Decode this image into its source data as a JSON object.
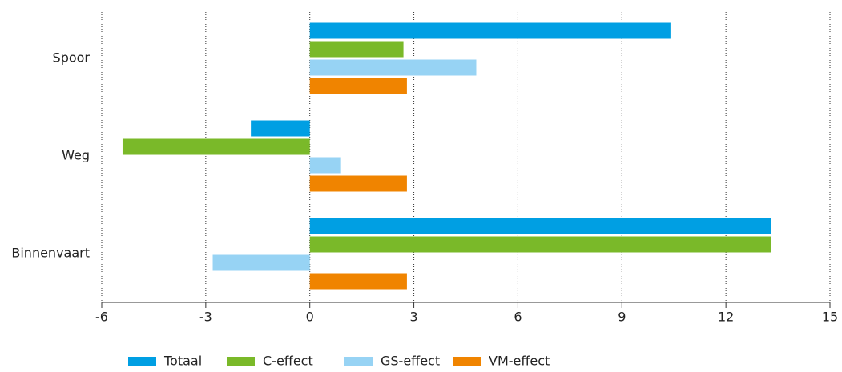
{
  "chart_data": {
    "type": "bar",
    "orientation": "horizontal",
    "categories": [
      "Spoor",
      "Weg",
      "Binnenvaart"
    ],
    "series": [
      {
        "name": "Totaal",
        "color": "#009fe3",
        "values": [
          10.4,
          -1.7,
          13.3
        ]
      },
      {
        "name": "C-effect",
        "color": "#7ab929",
        "values": [
          2.7,
          -5.4,
          13.3
        ]
      },
      {
        "name": "GS-effect",
        "color": "#97d3f4",
        "values": [
          4.8,
          0.9,
          -2.8
        ]
      },
      {
        "name": "VM-effect",
        "color": "#f08400",
        "values": [
          2.8,
          2.8,
          2.8
        ]
      }
    ],
    "xlim": [
      -6,
      15
    ],
    "xticks": [
      -6,
      -3,
      0,
      3,
      6,
      9,
      12,
      15
    ],
    "grid": true,
    "legend": "bottom"
  }
}
